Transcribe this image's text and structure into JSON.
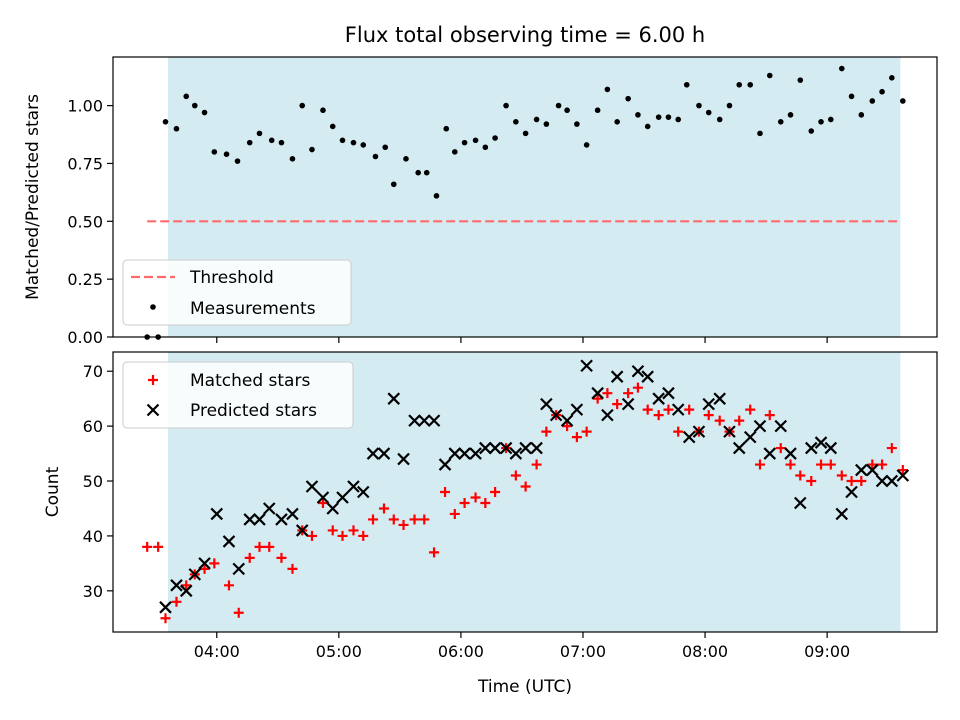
{
  "figure_title": "Flux total observing time = 6.00 h",
  "chart_data": [
    {
      "type": "scatter",
      "title": "Flux total observing time = 6.00 h",
      "xlabel": "",
      "ylabel": "Matched/Predicted stars",
      "xlim": [
        3.15,
        9.9
      ],
      "ylim": [
        0.0,
        1.21
      ],
      "xticks": [
        4,
        5,
        6,
        7,
        8,
        9
      ],
      "xtick_labels": [
        "04:00",
        "05:00",
        "06:00",
        "07:00",
        "08:00",
        "09:00"
      ],
      "show_xtick_labels": false,
      "yticks": [
        0.0,
        0.25,
        0.5,
        0.75,
        1.0
      ],
      "ytick_labels": [
        "0.00",
        "0.25",
        "0.50",
        "0.75",
        "1.00"
      ],
      "shaded_span": {
        "x0": 3.6,
        "x1": 9.6,
        "color": "#add8e6"
      },
      "threshold": {
        "name": "Threshold",
        "y": 0.5,
        "x0": 3.43,
        "x1": 9.6,
        "color": "#ff6b6b",
        "style": "dashed"
      },
      "legend": {
        "placement": "lower-left",
        "entries": [
          "Threshold",
          "Measurements"
        ]
      },
      "series": [
        {
          "name": "Measurements",
          "marker": "dot",
          "color": "#000000",
          "points": [
            [
              3.43,
              0.0
            ],
            [
              3.52,
              0.0
            ],
            [
              3.58,
              0.93
            ],
            [
              3.67,
              0.9
            ],
            [
              3.75,
              1.04
            ],
            [
              3.82,
              1.0
            ],
            [
              3.9,
              0.97
            ],
            [
              3.98,
              0.8
            ],
            [
              4.08,
              0.79
            ],
            [
              4.17,
              0.76
            ],
            [
              4.27,
              0.84
            ],
            [
              4.35,
              0.88
            ],
            [
              4.45,
              0.85
            ],
            [
              4.53,
              0.84
            ],
            [
              4.62,
              0.77
            ],
            [
              4.7,
              1.0
            ],
            [
              4.78,
              0.81
            ],
            [
              4.87,
              0.98
            ],
            [
              4.95,
              0.91
            ],
            [
              5.03,
              0.85
            ],
            [
              5.12,
              0.84
            ],
            [
              5.2,
              0.83
            ],
            [
              5.3,
              0.78
            ],
            [
              5.38,
              0.82
            ],
            [
              5.45,
              0.66
            ],
            [
              5.55,
              0.77
            ],
            [
              5.65,
              0.71
            ],
            [
              5.72,
              0.71
            ],
            [
              5.8,
              0.61
            ],
            [
              5.88,
              0.9
            ],
            [
              5.95,
              0.8
            ],
            [
              6.03,
              0.84
            ],
            [
              6.12,
              0.85
            ],
            [
              6.2,
              0.82
            ],
            [
              6.28,
              0.86
            ],
            [
              6.37,
              1.0
            ],
            [
              6.45,
              0.93
            ],
            [
              6.53,
              0.88
            ],
            [
              6.62,
              0.94
            ],
            [
              6.7,
              0.92
            ],
            [
              6.8,
              1.0
            ],
            [
              6.87,
              0.98
            ],
            [
              6.95,
              0.92
            ],
            [
              7.03,
              0.83
            ],
            [
              7.12,
              0.98
            ],
            [
              7.2,
              1.07
            ],
            [
              7.28,
              0.93
            ],
            [
              7.37,
              1.03
            ],
            [
              7.45,
              0.96
            ],
            [
              7.53,
              0.91
            ],
            [
              7.62,
              0.95
            ],
            [
              7.7,
              0.95
            ],
            [
              7.78,
              0.94
            ],
            [
              7.85,
              1.09
            ],
            [
              7.95,
              1.0
            ],
            [
              8.03,
              0.97
            ],
            [
              8.12,
              0.94
            ],
            [
              8.2,
              1.0
            ],
            [
              8.28,
              1.09
            ],
            [
              8.37,
              1.09
            ],
            [
              8.45,
              0.88
            ],
            [
              8.53,
              1.13
            ],
            [
              8.62,
              0.93
            ],
            [
              8.7,
              0.96
            ],
            [
              8.78,
              1.11
            ],
            [
              8.87,
              0.89
            ],
            [
              8.95,
              0.93
            ],
            [
              9.03,
              0.94
            ],
            [
              9.12,
              1.16
            ],
            [
              9.2,
              1.04
            ],
            [
              9.28,
              0.96
            ],
            [
              9.37,
              1.02
            ],
            [
              9.45,
              1.06
            ],
            [
              9.53,
              1.12
            ],
            [
              9.62,
              1.02
            ]
          ]
        }
      ]
    },
    {
      "type": "scatter",
      "title": "",
      "xlabel": "Time (UTC)",
      "ylabel": "Count",
      "xlim": [
        3.15,
        9.9
      ],
      "ylim": [
        22.5,
        73.5
      ],
      "xticks": [
        4,
        5,
        6,
        7,
        8,
        9
      ],
      "xtick_labels": [
        "04:00",
        "05:00",
        "06:00",
        "07:00",
        "08:00",
        "09:00"
      ],
      "show_xtick_labels": true,
      "yticks": [
        30,
        40,
        50,
        60,
        70
      ],
      "ytick_labels": [
        "30",
        "40",
        "50",
        "60",
        "70"
      ],
      "shaded_span": {
        "x0": 3.6,
        "x1": 9.6,
        "color": "#add8e6"
      },
      "legend": {
        "placement": "upper-left",
        "entries": [
          "Matched stars",
          "Predicted stars"
        ]
      },
      "series": [
        {
          "name": "Matched stars",
          "marker": "plus",
          "color": "#ff0000",
          "points": [
            [
              3.43,
              38
            ],
            [
              3.52,
              38
            ],
            [
              3.58,
              25
            ],
            [
              3.67,
              28
            ],
            [
              3.75,
              31
            ],
            [
              3.82,
              33
            ],
            [
              3.9,
              34
            ],
            [
              3.98,
              35
            ],
            [
              4.1,
              31
            ],
            [
              4.18,
              26
            ],
            [
              4.27,
              36
            ],
            [
              4.35,
              38
            ],
            [
              4.43,
              38
            ],
            [
              4.53,
              36
            ],
            [
              4.62,
              34
            ],
            [
              4.7,
              41
            ],
            [
              4.78,
              40
            ],
            [
              4.87,
              46
            ],
            [
              4.95,
              41
            ],
            [
              5.03,
              40
            ],
            [
              5.12,
              41
            ],
            [
              5.2,
              40
            ],
            [
              5.28,
              43
            ],
            [
              5.37,
              45
            ],
            [
              5.45,
              43
            ],
            [
              5.53,
              42
            ],
            [
              5.62,
              43
            ],
            [
              5.7,
              43
            ],
            [
              5.78,
              37
            ],
            [
              5.87,
              48
            ],
            [
              5.95,
              44
            ],
            [
              6.03,
              46
            ],
            [
              6.12,
              47
            ],
            [
              6.2,
              46
            ],
            [
              6.28,
              48
            ],
            [
              6.37,
              56
            ],
            [
              6.45,
              51
            ],
            [
              6.53,
              49
            ],
            [
              6.62,
              53
            ],
            [
              6.7,
              59
            ],
            [
              6.78,
              62
            ],
            [
              6.87,
              60
            ],
            [
              6.95,
              58
            ],
            [
              7.03,
              59
            ],
            [
              7.12,
              65
            ],
            [
              7.2,
              66
            ],
            [
              7.28,
              64
            ],
            [
              7.37,
              66
            ],
            [
              7.45,
              67
            ],
            [
              7.53,
              63
            ],
            [
              7.62,
              62
            ],
            [
              7.7,
              63
            ],
            [
              7.78,
              59
            ],
            [
              7.87,
              63
            ],
            [
              7.95,
              59
            ],
            [
              8.03,
              62
            ],
            [
              8.12,
              61
            ],
            [
              8.2,
              59
            ],
            [
              8.28,
              61
            ],
            [
              8.37,
              63
            ],
            [
              8.45,
              53
            ],
            [
              8.53,
              62
            ],
            [
              8.62,
              56
            ],
            [
              8.7,
              53
            ],
            [
              8.78,
              51
            ],
            [
              8.87,
              50
            ],
            [
              8.95,
              53
            ],
            [
              9.03,
              53
            ],
            [
              9.12,
              51
            ],
            [
              9.2,
              50
            ],
            [
              9.28,
              50
            ],
            [
              9.37,
              53
            ],
            [
              9.45,
              53
            ],
            [
              9.53,
              56
            ],
            [
              9.62,
              52
            ]
          ]
        },
        {
          "name": "Predicted stars",
          "marker": "x",
          "color": "#000000",
          "points": [
            [
              3.58,
              27
            ],
            [
              3.67,
              31
            ],
            [
              3.75,
              30
            ],
            [
              3.82,
              33
            ],
            [
              3.9,
              35
            ],
            [
              4.0,
              44
            ],
            [
              4.1,
              39
            ],
            [
              4.18,
              34
            ],
            [
              4.27,
              43
            ],
            [
              4.35,
              43
            ],
            [
              4.43,
              45
            ],
            [
              4.53,
              43
            ],
            [
              4.62,
              44
            ],
            [
              4.7,
              41
            ],
            [
              4.78,
              49
            ],
            [
              4.87,
              47
            ],
            [
              4.95,
              45
            ],
            [
              5.03,
              47
            ],
            [
              5.12,
              49
            ],
            [
              5.2,
              48
            ],
            [
              5.28,
              55
            ],
            [
              5.37,
              55
            ],
            [
              5.45,
              65
            ],
            [
              5.53,
              54
            ],
            [
              5.62,
              61
            ],
            [
              5.7,
              61
            ],
            [
              5.78,
              61
            ],
            [
              5.87,
              53
            ],
            [
              5.95,
              55
            ],
            [
              6.03,
              55
            ],
            [
              6.12,
              55
            ],
            [
              6.2,
              56
            ],
            [
              6.28,
              56
            ],
            [
              6.37,
              56
            ],
            [
              6.45,
              55
            ],
            [
              6.53,
              56
            ],
            [
              6.62,
              56
            ],
            [
              6.7,
              64
            ],
            [
              6.78,
              62
            ],
            [
              6.87,
              61
            ],
            [
              6.95,
              63
            ],
            [
              7.03,
              71
            ],
            [
              7.12,
              66
            ],
            [
              7.2,
              62
            ],
            [
              7.28,
              69
            ],
            [
              7.37,
              64
            ],
            [
              7.45,
              70
            ],
            [
              7.53,
              69
            ],
            [
              7.62,
              65
            ],
            [
              7.7,
              66
            ],
            [
              7.78,
              63
            ],
            [
              7.87,
              58
            ],
            [
              7.95,
              59
            ],
            [
              8.03,
              64
            ],
            [
              8.12,
              65
            ],
            [
              8.2,
              59
            ],
            [
              8.28,
              56
            ],
            [
              8.37,
              58
            ],
            [
              8.45,
              60
            ],
            [
              8.53,
              55
            ],
            [
              8.62,
              60
            ],
            [
              8.7,
              55
            ],
            [
              8.78,
              46
            ],
            [
              8.87,
              56
            ],
            [
              8.95,
              57
            ],
            [
              9.03,
              56
            ],
            [
              9.12,
              44
            ],
            [
              9.2,
              48
            ],
            [
              9.28,
              52
            ],
            [
              9.37,
              52
            ],
            [
              9.45,
              50
            ],
            [
              9.53,
              50
            ],
            [
              9.62,
              51
            ]
          ]
        }
      ]
    }
  ]
}
